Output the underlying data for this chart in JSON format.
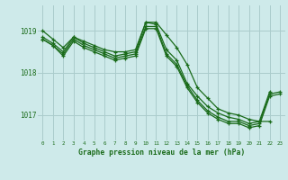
{
  "title": "Graphe pression niveau de la mer (hPa)",
  "background_color": "#ceeaea",
  "grid_color": "#aacccc",
  "line_color": "#1a6b1a",
  "xlim": [
    -0.5,
    23.5
  ],
  "ylim": [
    1016.4,
    1019.6
  ],
  "yticks": [
    1017,
    1018,
    1019
  ],
  "xticks": [
    0,
    1,
    2,
    3,
    4,
    5,
    6,
    7,
    8,
    9,
    10,
    11,
    12,
    13,
    14,
    15,
    16,
    17,
    18,
    19,
    20,
    21,
    22,
    23
  ],
  "series": [
    {
      "x": [
        0,
        1,
        2,
        3,
        4,
        5,
        6,
        7,
        8,
        9,
        10,
        11,
        12,
        13,
        14,
        15,
        16,
        17,
        18,
        19,
        20,
        21,
        22
      ],
      "y": [
        1019.0,
        1018.8,
        1018.6,
        1018.85,
        1018.75,
        1018.65,
        1018.55,
        1018.5,
        1018.5,
        1018.55,
        1019.2,
        1019.2,
        1018.9,
        1018.6,
        1018.2,
        1017.65,
        1017.4,
        1017.15,
        1017.05,
        1017.0,
        1016.9,
        1016.85,
        1016.85
      ]
    },
    {
      "x": [
        0,
        1,
        2,
        3,
        4,
        5,
        6,
        7,
        8,
        9,
        10,
        11,
        12,
        13,
        14,
        15,
        16,
        17,
        18,
        19,
        20,
        21,
        22
      ],
      "y": [
        1018.85,
        1018.7,
        1018.5,
        1018.85,
        1018.7,
        1018.6,
        1018.5,
        1018.4,
        1018.45,
        1018.5,
        1019.2,
        1019.15,
        1018.55,
        1018.3,
        1017.75,
        1017.45,
        1017.2,
        1017.05,
        1016.95,
        1016.9,
        1016.8,
        1016.85,
        1017.55
      ]
    },
    {
      "x": [
        0,
        1,
        2,
        3,
        4,
        5,
        6,
        7,
        8,
        9,
        10,
        11,
        12,
        13,
        14,
        15,
        16,
        17,
        18,
        19,
        20,
        21,
        22,
        23
      ],
      "y": [
        1018.8,
        1018.65,
        1018.45,
        1018.8,
        1018.65,
        1018.55,
        1018.45,
        1018.35,
        1018.4,
        1018.45,
        1019.1,
        1019.1,
        1018.45,
        1018.2,
        1017.7,
        1017.35,
        1017.1,
        1016.95,
        1016.85,
        1016.85,
        1016.75,
        1016.8,
        1017.5,
        1017.55
      ]
    },
    {
      "x": [
        0,
        1,
        2,
        3,
        4,
        5,
        6,
        7,
        8,
        9,
        10,
        11,
        12,
        13,
        14,
        15,
        16,
        17,
        18,
        19,
        20,
        21,
        22,
        23
      ],
      "y": [
        1018.8,
        1018.65,
        1018.4,
        1018.75,
        1018.6,
        1018.5,
        1018.4,
        1018.3,
        1018.35,
        1018.4,
        1019.05,
        1019.05,
        1018.4,
        1018.15,
        1017.65,
        1017.3,
        1017.05,
        1016.9,
        1016.8,
        1016.8,
        1016.7,
        1016.75,
        1017.45,
        1017.5
      ]
    }
  ]
}
